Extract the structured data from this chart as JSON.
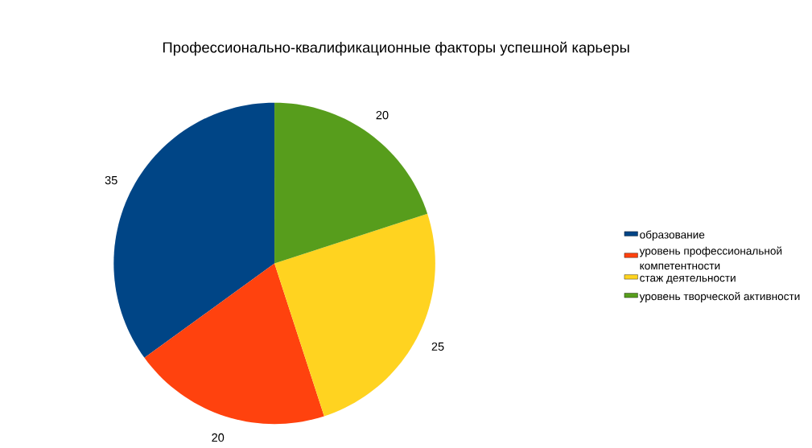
{
  "chart_data": {
    "type": "pie",
    "title": "Профессионально-квалификационные факторы успешной карьеры",
    "categories": [
      "образование",
      "уровень профессиональной компетентности",
      "стаж деятельности",
      "уровень творческой активности"
    ],
    "values": [
      35,
      20,
      25,
      20
    ],
    "colors": [
      "#004586",
      "#ff420e",
      "#ffd320",
      "#579d1c"
    ],
    "data_labels": true,
    "legend": "right"
  }
}
